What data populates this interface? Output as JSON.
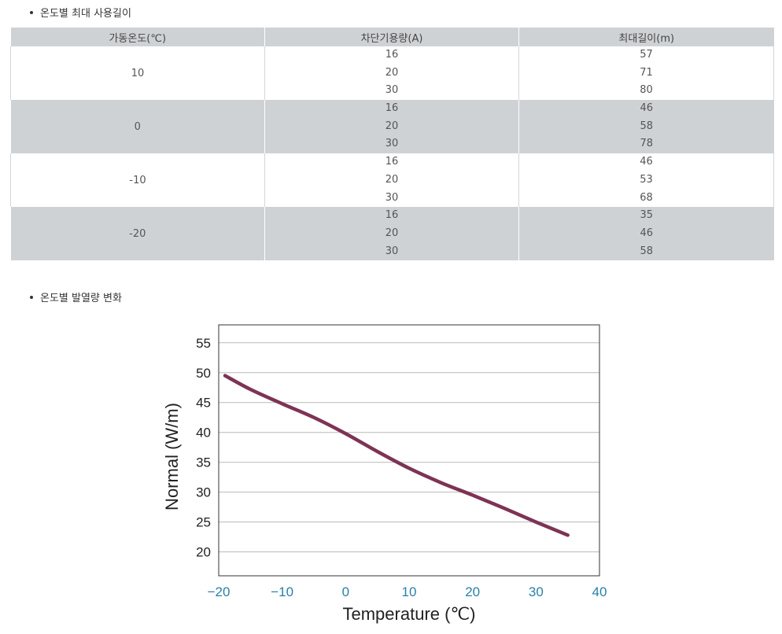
{
  "sections": {
    "table_title": "온도별 최대 사용길이",
    "chart_title": "온도별 발열량 변화"
  },
  "table": {
    "headers": [
      "가동온도(℃)",
      "차단기용량(A)",
      "최대길이(m)"
    ],
    "groups": [
      {
        "temp": "10",
        "rows": [
          {
            "amp": "16",
            "len": "57"
          },
          {
            "amp": "20",
            "len": "71"
          },
          {
            "amp": "30",
            "len": "80"
          }
        ]
      },
      {
        "temp": "0",
        "rows": [
          {
            "amp": "16",
            "len": "46"
          },
          {
            "amp": "20",
            "len": "58"
          },
          {
            "amp": "30",
            "len": "78"
          }
        ]
      },
      {
        "temp": "-10",
        "rows": [
          {
            "amp": "16",
            "len": "46"
          },
          {
            "amp": "20",
            "len": "53"
          },
          {
            "amp": "30",
            "len": "68"
          }
        ]
      },
      {
        "temp": "-20",
        "rows": [
          {
            "amp": "16",
            "len": "35"
          },
          {
            "amp": "20",
            "len": "46"
          },
          {
            "amp": "30",
            "len": "58"
          }
        ]
      }
    ]
  },
  "chart_data": {
    "type": "line",
    "title": "",
    "xlabel": "Temperature (℃)",
    "ylabel": "Normal (W/m)",
    "xlim": [
      -20,
      40
    ],
    "ylim": [
      16,
      58
    ],
    "x_ticks": [
      "−20",
      "−10",
      "0",
      "10",
      "20",
      "30",
      "40"
    ],
    "x_tick_values": [
      -20,
      -10,
      0,
      10,
      20,
      30,
      40
    ],
    "y_ticks": [
      "20",
      "25",
      "30",
      "35",
      "40",
      "45",
      "50",
      "55"
    ],
    "y_tick_values": [
      20,
      25,
      30,
      35,
      40,
      45,
      50,
      55
    ],
    "grid": "horizontal",
    "series": [
      {
        "color": "#7e3354",
        "x": [
          -19,
          -15,
          -10,
          -5,
          0,
          5,
          10,
          15,
          20,
          25,
          30,
          35
        ],
        "y": [
          49.5,
          47.2,
          44.8,
          42.5,
          39.8,
          36.8,
          34.0,
          31.6,
          29.5,
          27.3,
          25.0,
          22.8
        ]
      }
    ]
  }
}
